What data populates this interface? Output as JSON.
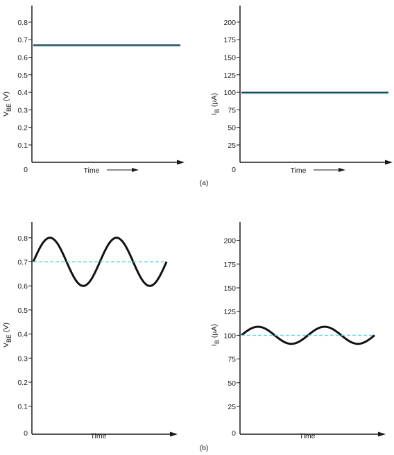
{
  "chart_data": [
    {
      "id": "a-left",
      "type": "line",
      "panel": "(a)",
      "xlabel": "Time",
      "ylabel": "V_BE (V)",
      "ylim": [
        0,
        0.8
      ],
      "yticks": [
        "0.1",
        "0.2",
        "0.3",
        "0.4",
        "0.5",
        "0.6",
        "0.7",
        "0.8"
      ],
      "origin_label": "0",
      "series": [
        {
          "kind": "dc",
          "color": "#1a1a1a",
          "shadow": "#4aa3c4",
          "x": [
            0,
            1
          ],
          "y": [
            0.67,
            0.67
          ]
        }
      ]
    },
    {
      "id": "a-right",
      "type": "line",
      "panel": "(a)",
      "xlabel": "Time",
      "ylabel": "I_B (µA)",
      "ylim": [
        0,
        220
      ],
      "yticks": [
        "25",
        "50",
        "75",
        "100",
        "125",
        "150",
        "175",
        "200"
      ],
      "origin_label": "0",
      "series": [
        {
          "kind": "dc",
          "color": "#1a1a1a",
          "shadow": "#4aa3c4",
          "x": [
            0,
            1
          ],
          "y": [
            100,
            100
          ]
        }
      ]
    },
    {
      "id": "b-left",
      "type": "line",
      "panel": "(b)",
      "xlabel": "Time",
      "ylabel": "V_BE (V)",
      "ylim": [
        0,
        0.85
      ],
      "yticks": [
        "0.1",
        "0.2",
        "0.3",
        "0.4",
        "0.5",
        "0.6",
        "0.7",
        "0.8"
      ],
      "origin_label": "0",
      "series": [
        {
          "kind": "sine",
          "color": "#111111",
          "offset": 0.7,
          "amplitude": 0.1,
          "cycles": 2,
          "phase": 0
        },
        {
          "kind": "dc-dashed",
          "color": "#5fd6e6",
          "y": 0.7
        }
      ]
    },
    {
      "id": "b-right",
      "type": "line",
      "panel": "(b)",
      "xlabel": "Time",
      "ylabel": "I_B (µA)",
      "ylim": [
        0,
        220
      ],
      "yticks": [
        "25",
        "50",
        "75",
        "100",
        "125",
        "150",
        "175",
        "200"
      ],
      "origin_label": "0",
      "series": [
        {
          "kind": "sine",
          "color": "#111111",
          "offset": 100,
          "amplitude": 9,
          "cycles": 2,
          "phase": 0
        },
        {
          "kind": "dc-dashed",
          "color": "#5fd6e6",
          "y": 100
        }
      ]
    }
  ],
  "panel_labels": {
    "a": "(a)",
    "b": "(b)"
  }
}
